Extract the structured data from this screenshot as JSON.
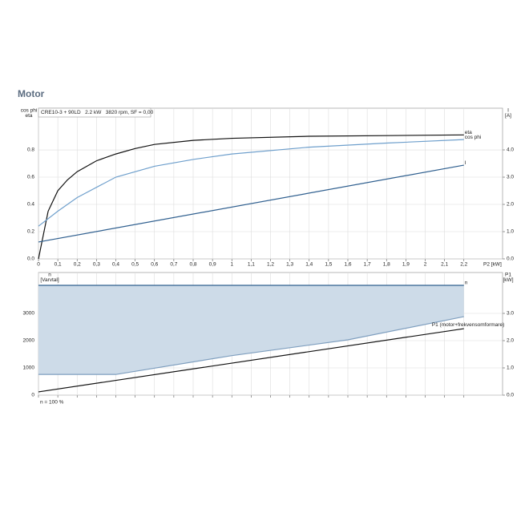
{
  "heading": "Motor",
  "chart_data": [
    {
      "type": "line",
      "info": "CRE10-3 + 90LD   2.2 kW   3820 rpm, SF = 0,00",
      "ylabel": [
        "cos phi",
        "eta"
      ],
      "y2label": [
        "I",
        "[A]"
      ],
      "xlabel": "P2 [kW]",
      "xlim": [
        0,
        2.4
      ],
      "xticks": [
        0,
        {
          "value": 0.1,
          "label": "0,1"
        },
        {
          "value": 0.2,
          "label": "0,2"
        },
        {
          "value": 0.3,
          "label": "0,3"
        },
        {
          "value": 0.4,
          "label": "0,4"
        },
        {
          "value": 0.5,
          "label": "0,5"
        },
        {
          "value": 0.6,
          "label": "0,6"
        },
        {
          "value": 0.7,
          "label": "0,7"
        },
        {
          "value": 0.8,
          "label": "0,8"
        },
        {
          "value": 0.9,
          "label": "0,9"
        },
        1,
        {
          "value": 1.1,
          "label": "1,1"
        },
        {
          "value": 1.2,
          "label": "1,2"
        },
        {
          "value": 1.3,
          "label": "1,3"
        },
        {
          "value": 1.4,
          "label": "1,4"
        },
        {
          "value": 1.5,
          "label": "1,5"
        },
        {
          "value": 1.6,
          "label": "1,6"
        },
        {
          "value": 1.7,
          "label": "1,7"
        },
        {
          "value": 1.8,
          "label": "1,8"
        },
        {
          "value": 1.9,
          "label": "1,9"
        },
        2,
        {
          "value": 2.1,
          "label": "2,1"
        },
        {
          "value": 2.2,
          "label": "2,2"
        }
      ],
      "show_xtick_labels": true,
      "ylim": [
        0,
        1.106
      ],
      "yticks": [
        {
          "value": 0,
          "label": "0.0"
        },
        0.2,
        0.4,
        0.6,
        0.8
      ],
      "y2lim": [
        0,
        5.53
      ],
      "y2ticks": [
        {
          "value": 0,
          "label": "0.0"
        },
        {
          "value": 1,
          "label": "1.0"
        },
        {
          "value": 2,
          "label": "2.0"
        },
        {
          "value": 3,
          "label": "3.0"
        },
        {
          "value": 4,
          "label": "4.0"
        }
      ],
      "grid": true,
      "series": [
        {
          "name": "eta",
          "color": "#111111",
          "x": [
            0,
            0.05,
            0.1,
            0.15,
            0.2,
            0.3,
            0.4,
            0.5,
            0.6,
            0.8,
            1.0,
            1.4,
            1.8,
            2.2
          ],
          "values": [
            0,
            0.35,
            0.5,
            0.58,
            0.64,
            0.72,
            0.77,
            0.81,
            0.84,
            0.87,
            0.885,
            0.9,
            0.905,
            0.91
          ]
        },
        {
          "name": "cos phi",
          "color": "#6e9fcc",
          "x": [
            0,
            0.1,
            0.2,
            0.4,
            0.6,
            0.8,
            1.0,
            1.4,
            1.8,
            2.2
          ],
          "values": [
            0.24,
            0.35,
            0.45,
            0.6,
            0.68,
            0.73,
            0.77,
            0.82,
            0.85,
            0.876
          ]
        },
        {
          "name": "I",
          "color": "#2f5f8f",
          "axis": "y2",
          "x": [
            0,
            2.2
          ],
          "values": [
            0.62,
            3.44
          ]
        }
      ]
    },
    {
      "type": "line",
      "ylabel": [
        "n",
        "[Varvtal]"
      ],
      "y2label": [
        "P1",
        "[kW]"
      ],
      "note": "n = 100 %",
      "xlim": [
        0,
        2.4
      ],
      "xticks": [
        0,
        0.1,
        0.2,
        0.3,
        0.4,
        0.5,
        0.6,
        0.7,
        0.8,
        0.9,
        1,
        1.1,
        1.2,
        1.3,
        1.4,
        1.5,
        1.6,
        1.7,
        1.8,
        1.9,
        2,
        2.1,
        2.2
      ],
      "show_xtick_labels": false,
      "ylim": [
        0,
        4500
      ],
      "yticks": [
        0,
        1000,
        2000,
        3000
      ],
      "y2lim": [
        0,
        4.5
      ],
      "y2ticks": [
        {
          "value": 0,
          "label": "0.0"
        },
        {
          "value": 1,
          "label": "1.0"
        },
        {
          "value": 2,
          "label": "2.0"
        },
        {
          "value": 3,
          "label": "3.0"
        }
      ],
      "grid": true,
      "area_between": [
        0,
        1
      ],
      "area_color": "#cddbe8",
      "series": [
        {
          "name": "n",
          "color": "#2f5f8f",
          "x": [
            0,
            2.2
          ],
          "values": [
            4030,
            4030
          ]
        },
        {
          "color": "#7f9fbf",
          "x": [
            0,
            0.4,
            1.0,
            1.6,
            2.2
          ],
          "values": [
            760,
            760,
            1450,
            2030,
            2880
          ]
        },
        {
          "name": "P1 (motor+frekvensomformare)",
          "color": "#111111",
          "axis": "y2",
          "x": [
            0,
            2.2
          ],
          "values": [
            0.12,
            2.44
          ]
        }
      ]
    }
  ]
}
